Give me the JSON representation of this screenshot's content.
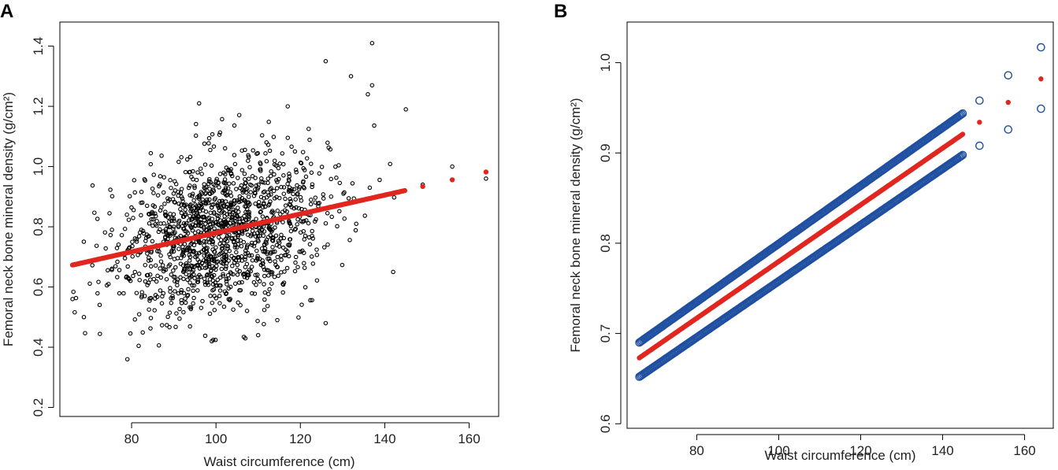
{
  "colors": {
    "fitted": "#e0261f",
    "ci": "#1f4fa0",
    "points": "#000000",
    "axis": "#000000"
  },
  "chart_data": [
    {
      "panel": "A",
      "type": "scatter",
      "title": "",
      "xlabel": "Waist circumference (cm)",
      "ylabel": "Femoral neck bone mineral density (g/cm²)",
      "xlim": [
        63,
        167
      ],
      "ylim": [
        0.17,
        1.48
      ],
      "x_ticks": [
        80,
        100,
        120,
        140,
        160
      ],
      "x_tick_labels": [
        "80",
        "100",
        "120",
        "140",
        "160"
      ],
      "y_ticks": [
        0.2,
        0.4,
        0.6,
        0.8,
        1.0,
        1.2,
        1.4
      ],
      "y_tick_labels": [
        "0.2",
        "0.4",
        "0.6",
        "0.8",
        "1.0",
        "1.2",
        "1.4"
      ],
      "observed_point_count": 1400,
      "observed_x_range": [
        66,
        165
      ],
      "observed_y_range": [
        0.36,
        1.41
      ],
      "observed_highlights": [
        {
          "x": 79,
          "y": 0.36
        },
        {
          "x": 99,
          "y": 0.42
        },
        {
          "x": 110,
          "y": 0.44
        },
        {
          "x": 126,
          "y": 0.48
        },
        {
          "x": 137,
          "y": 1.41
        },
        {
          "x": 126,
          "y": 1.35
        },
        {
          "x": 132,
          "y": 1.3
        },
        {
          "x": 137,
          "y": 1.27
        },
        {
          "x": 136,
          "y": 1.24
        },
        {
          "x": 145,
          "y": 1.19
        },
        {
          "x": 96,
          "y": 1.21
        },
        {
          "x": 117,
          "y": 1.2
        },
        {
          "x": 156,
          "y": 1.0
        },
        {
          "x": 164,
          "y": 0.96
        },
        {
          "x": 149,
          "y": 0.94
        },
        {
          "x": 142,
          "y": 0.65
        },
        {
          "x": 66,
          "y": 0.56
        }
      ],
      "fitted_line": {
        "name": "Fitted",
        "x_range": [
          66,
          145
        ],
        "y_range": [
          0.673,
          0.921
        ],
        "sparse_points": [
          {
            "x": 149,
            "y": 0.934
          },
          {
            "x": 156,
            "y": 0.956
          },
          {
            "x": 164,
            "y": 0.982
          }
        ]
      }
    },
    {
      "panel": "B",
      "type": "scatter",
      "title": "",
      "xlabel": "Waist circumference (cm)",
      "ylabel": "Femoral neck bone mineral density (g/cm²)",
      "xlim": [
        63,
        167
      ],
      "ylim": [
        0.595,
        1.045
      ],
      "x_ticks": [
        80,
        100,
        120,
        140,
        160
      ],
      "x_tick_labels": [
        "80",
        "100",
        "120",
        "140",
        "160"
      ],
      "y_ticks": [
        0.6,
        0.7,
        0.8,
        0.9,
        1.0
      ],
      "y_tick_labels": [
        "0.6",
        "0.7",
        "0.8",
        "0.9",
        "1.0"
      ],
      "series": [
        {
          "name": "Fitted",
          "x_range": [
            66,
            145
          ],
          "y_range": [
            0.673,
            0.921
          ],
          "sparse_points": [
            {
              "x": 149,
              "y": 0.934
            },
            {
              "x": 156,
              "y": 0.956
            },
            {
              "x": 164,
              "y": 0.982
            }
          ]
        },
        {
          "name": "Upper 95% CI",
          "x_range": [
            66,
            145
          ],
          "y_range": [
            0.69,
            0.944
          ],
          "sparse_points": [
            {
              "x": 149,
              "y": 0.958
            },
            {
              "x": 156,
              "y": 0.986
            },
            {
              "x": 164,
              "y": 1.017
            }
          ]
        },
        {
          "name": "Lower 95% CI",
          "x_range": [
            66,
            145
          ],
          "y_range": [
            0.652,
            0.898
          ],
          "sparse_points": [
            {
              "x": 149,
              "y": 0.908
            },
            {
              "x": 156,
              "y": 0.926
            },
            {
              "x": 164,
              "y": 0.949
            }
          ]
        }
      ]
    }
  ]
}
